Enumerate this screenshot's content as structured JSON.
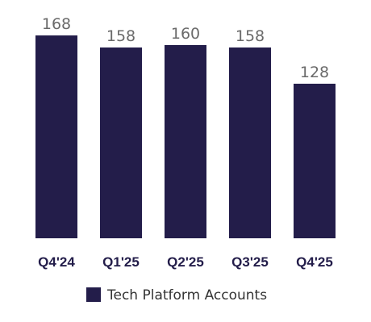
{
  "chart_data": {
    "type": "bar",
    "categories": [
      "Q4'24",
      "Q1'25",
      "Q2'25",
      "Q3'25",
      "Q4'25"
    ],
    "series": [
      {
        "name": "Tech Platform Accounts",
        "values": [
          168,
          158,
          160,
          158,
          128
        ],
        "color": "#231d4a"
      }
    ],
    "data_labels": [
      "168",
      "158",
      "160",
      "158",
      "128"
    ],
    "legend_position": "bottom",
    "grid": false,
    "ylim": [
      0,
      168
    ]
  }
}
